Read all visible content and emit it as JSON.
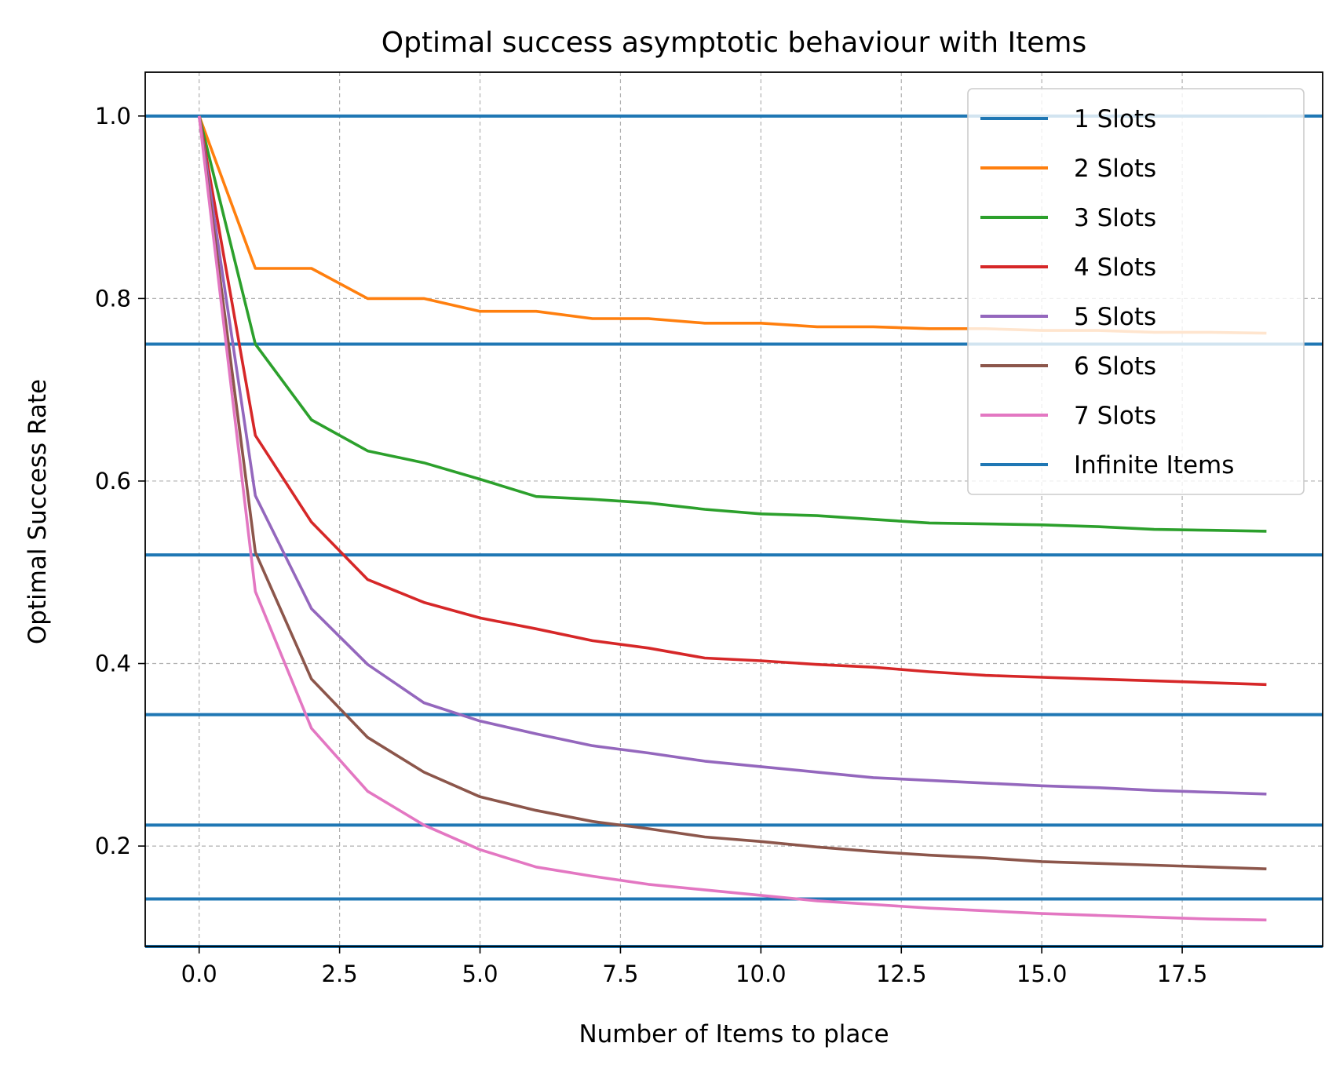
{
  "chart_data": {
    "type": "line",
    "title": "Optimal success asymptotic behaviour with Items",
    "xlabel": "Number of Items to place",
    "ylabel": "Optimal Success Rate",
    "xlim": [
      -0.96,
      20.0
    ],
    "ylim": [
      0.09,
      1.048
    ],
    "xticks": [
      0.0,
      2.5,
      5.0,
      7.5,
      10.0,
      12.5,
      15.0,
      17.5
    ],
    "xtick_labels": [
      "0.0",
      "2.5",
      "5.0",
      "7.5",
      "10.0",
      "12.5",
      "15.0",
      "17.5"
    ],
    "yticks": [
      0.2,
      0.4,
      0.6,
      0.8,
      1.0
    ],
    "ytick_labels": [
      "0.2",
      "0.4",
      "0.6",
      "0.8",
      "1.0"
    ],
    "grid": true,
    "legend_position": "upper-right",
    "x": [
      0,
      1,
      2,
      3,
      4,
      5,
      6,
      7,
      8,
      9,
      10,
      11,
      12,
      13,
      14,
      15,
      16,
      17,
      18,
      19
    ],
    "series": [
      {
        "name": "1 Slots",
        "color": "#1f77b4",
        "values": [
          1.0,
          1.0,
          1.0,
          1.0,
          1.0,
          1.0,
          1.0,
          1.0,
          1.0,
          1.0,
          1.0,
          1.0,
          1.0,
          1.0,
          1.0,
          1.0,
          1.0,
          1.0,
          1.0,
          1.0
        ]
      },
      {
        "name": "2 Slots",
        "color": "#ff7f0e",
        "values": [
          1.0,
          0.833,
          0.833,
          0.8,
          0.8,
          0.786,
          0.786,
          0.778,
          0.778,
          0.773,
          0.773,
          0.769,
          0.769,
          0.767,
          0.767,
          0.765,
          0.765,
          0.763,
          0.763,
          0.762
        ]
      },
      {
        "name": "3 Slots",
        "color": "#2ca02c",
        "values": [
          1.0,
          0.75,
          0.667,
          0.633,
          0.62,
          0.602,
          0.583,
          0.58,
          0.576,
          0.569,
          0.564,
          0.562,
          0.558,
          0.554,
          0.553,
          0.552,
          0.55,
          0.547,
          0.546,
          0.545
        ]
      },
      {
        "name": "4 Slots",
        "color": "#d62728",
        "values": [
          1.0,
          0.65,
          0.555,
          0.492,
          0.467,
          0.45,
          0.438,
          0.425,
          0.417,
          0.406,
          0.403,
          0.399,
          0.396,
          0.391,
          0.387,
          0.385,
          0.383,
          0.381,
          0.379,
          0.377
        ]
      },
      {
        "name": "5 Slots",
        "color": "#9467bd",
        "values": [
          1.0,
          0.584,
          0.46,
          0.399,
          0.357,
          0.337,
          0.323,
          0.31,
          0.302,
          0.293,
          0.287,
          0.281,
          0.275,
          0.272,
          0.269,
          0.266,
          0.264,
          0.261,
          0.259,
          0.257
        ]
      },
      {
        "name": "6 Slots",
        "color": "#8c564b",
        "values": [
          1.0,
          0.522,
          0.383,
          0.319,
          0.281,
          0.254,
          0.239,
          0.227,
          0.219,
          0.21,
          0.205,
          0.199,
          0.194,
          0.19,
          0.187,
          0.183,
          0.181,
          0.179,
          0.177,
          0.175
        ]
      },
      {
        "name": "7 Slots",
        "color": "#e377c2",
        "values": [
          1.0,
          0.479,
          0.329,
          0.26,
          0.223,
          0.196,
          0.177,
          0.167,
          0.158,
          0.152,
          0.146,
          0.14,
          0.136,
          0.132,
          0.129,
          0.126,
          0.124,
          0.122,
          0.12,
          0.119
        ]
      }
    ],
    "reference_lines": {
      "name": "Infinite Items",
      "color": "#1f77b4",
      "values": [
        1.0,
        0.75,
        0.519,
        0.344,
        0.223,
        0.142,
        0.09
      ]
    }
  }
}
